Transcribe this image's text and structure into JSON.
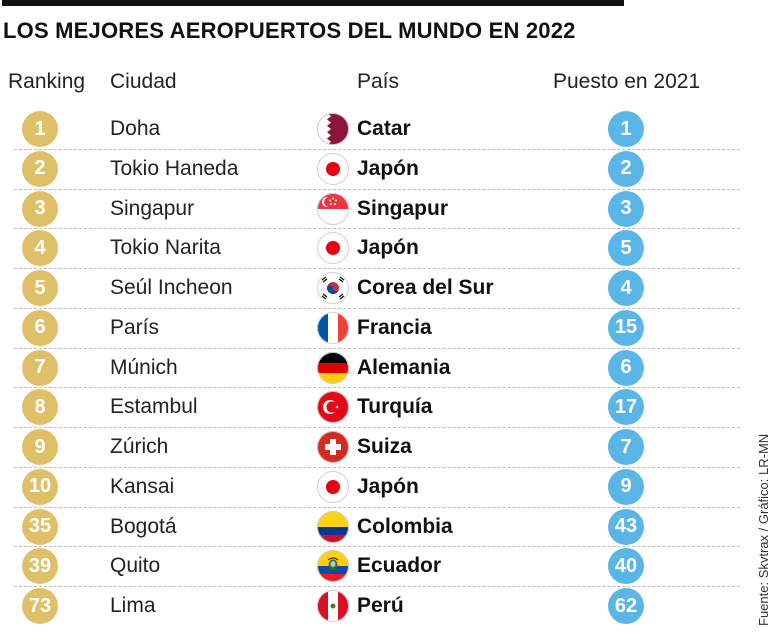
{
  "title": "LOS MEJORES AEROPUERTOS DEL MUNDO EN 2022",
  "source": "Fuente: Skytrax / Gráfico: LR-MN",
  "chart_data": {
    "type": "table",
    "columns": [
      "Ranking",
      "Ciudad",
      "País",
      "Puesto en 2021"
    ],
    "rows": [
      {
        "rank": "1",
        "city": "Doha",
        "country": "Catar",
        "flag": "qatar-flag-icon",
        "prev": "1"
      },
      {
        "rank": "2",
        "city": "Tokio Haneda",
        "country": "Japón",
        "flag": "japan-flag-icon",
        "prev": "2"
      },
      {
        "rank": "3",
        "city": "Singapur",
        "country": "Singapur",
        "flag": "singapore-flag-icon",
        "prev": "3"
      },
      {
        "rank": "4",
        "city": "Tokio Narita",
        "country": "Japón",
        "flag": "japan-flag-icon",
        "prev": "5"
      },
      {
        "rank": "5",
        "city": "Seúl Incheon",
        "country": "Corea del Sur",
        "flag": "south-korea-flag-icon",
        "prev": "4"
      },
      {
        "rank": "6",
        "city": "París",
        "country": "Francia",
        "flag": "france-flag-icon",
        "prev": "15"
      },
      {
        "rank": "7",
        "city": "Múnich",
        "country": "Alemania",
        "flag": "germany-flag-icon",
        "prev": "6"
      },
      {
        "rank": "8",
        "city": "Estambul",
        "country": "Turquía",
        "flag": "turkey-flag-icon",
        "prev": "17"
      },
      {
        "rank": "9",
        "city": "Zúrich",
        "country": "Suiza",
        "flag": "switzerland-flag-icon",
        "prev": "7"
      },
      {
        "rank": "10",
        "city": "Kansai",
        "country": "Japón",
        "flag": "japan-flag-icon",
        "prev": "9"
      },
      {
        "rank": "35",
        "city": "Bogotá",
        "country": "Colombia",
        "flag": "colombia-flag-icon",
        "prev": "43"
      },
      {
        "rank": "39",
        "city": "Quito",
        "country": "Ecuador",
        "flag": "ecuador-flag-icon",
        "prev": "40"
      },
      {
        "rank": "73",
        "city": "Lima",
        "country": "Perú",
        "flag": "peru-flag-icon",
        "prev": "62"
      }
    ]
  },
  "colors": {
    "rank_badge": "#dfc068",
    "prev_badge": "#5ab6e6"
  }
}
